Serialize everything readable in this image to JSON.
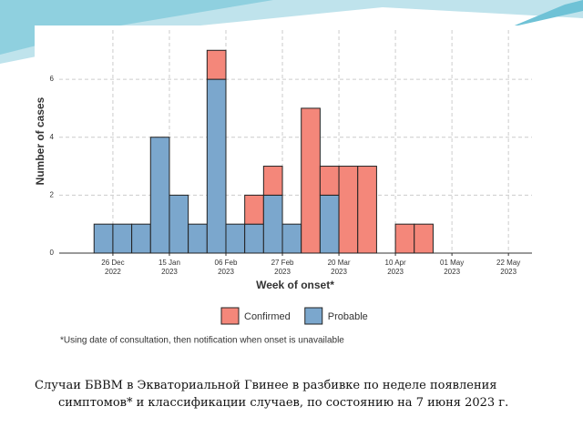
{
  "chart_data": {
    "type": "stacked-histogram",
    "ylabel": "Number of cases",
    "xlabel": "Week of onset*",
    "note": "*Using date of consultation, then notification when onset is unavailable",
    "bins": [
      0,
      1,
      2,
      3,
      4,
      5,
      6,
      7,
      8,
      9,
      10,
      11,
      12,
      13,
      14,
      15,
      16,
      17,
      18
    ],
    "xlim": [
      -1.85,
      23.25
    ],
    "xticks": [
      {
        "value": 1,
        "label": [
          "26 Dec",
          "2022"
        ]
      },
      {
        "value": 4,
        "label": [
          "15 Jan",
          "2023"
        ]
      },
      {
        "value": 7,
        "label": [
          "06 Feb",
          "2023"
        ]
      },
      {
        "value": 10,
        "label": [
          "27 Feb",
          "2023"
        ]
      },
      {
        "value": 13,
        "label": [
          "20 Mar",
          "2023"
        ]
      },
      {
        "value": 16,
        "label": [
          "10 Apr",
          "2023"
        ]
      },
      {
        "value": 19,
        "label": [
          "01 May",
          "2023"
        ]
      },
      {
        "value": 22,
        "label": [
          "22 May",
          "2023"
        ]
      }
    ],
    "ylim": [
      0,
      7.7
    ],
    "yticks": [
      0,
      2,
      4,
      6
    ],
    "grid": true,
    "series": [
      {
        "name": "Probable",
        "color": "#7ba7cd",
        "values": [
          1,
          1,
          1,
          4,
          2,
          1,
          6,
          1,
          1,
          2,
          1,
          0,
          2,
          0,
          0,
          0,
          0,
          0
        ]
      },
      {
        "name": "Confirmed",
        "color": "#f4877a",
        "values": [
          0,
          0,
          0,
          0,
          0,
          0,
          1,
          0,
          1,
          1,
          0,
          5,
          1,
          3,
          3,
          0,
          1,
          1
        ]
      }
    ],
    "legend_order": [
      1,
      0
    ]
  },
  "caption": "Случаи БВВМ в Экваториальной Гвинее в разбивке по неделе появления симптомов* и классификации случаев, по состоянию на 7 июня 2023 г."
}
